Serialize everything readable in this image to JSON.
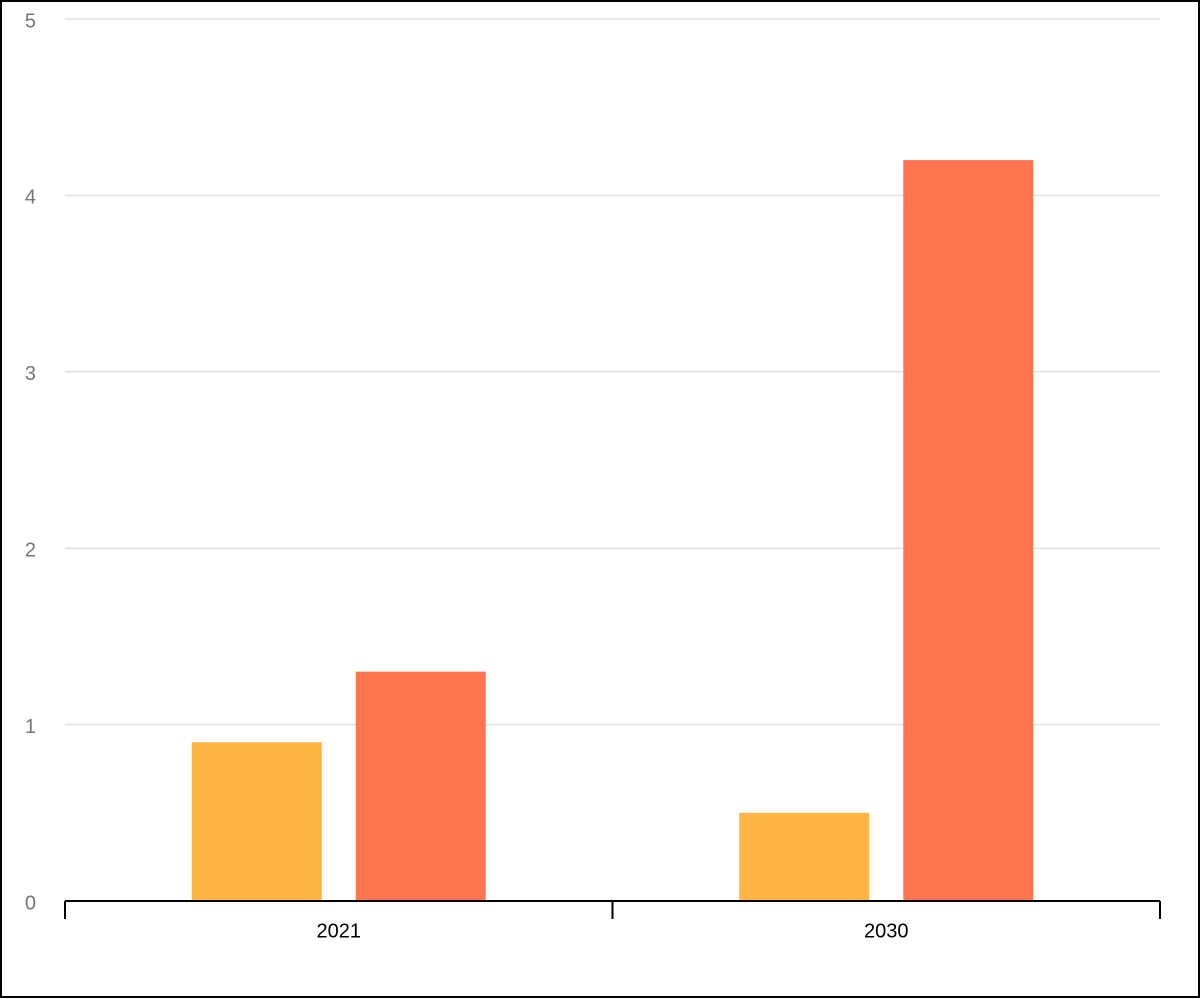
{
  "chart_data": {
    "type": "bar",
    "categories": [
      "2021",
      "2030"
    ],
    "series": [
      {
        "color": "#ffb444",
        "values": [
          0.9,
          0.5
        ]
      },
      {
        "color": "#ff7550",
        "values": [
          1.3,
          4.2
        ]
      }
    ],
    "ylim": [
      0,
      5
    ],
    "yticks": [
      0,
      1,
      2,
      3,
      4,
      5
    ],
    "grid": true
  }
}
